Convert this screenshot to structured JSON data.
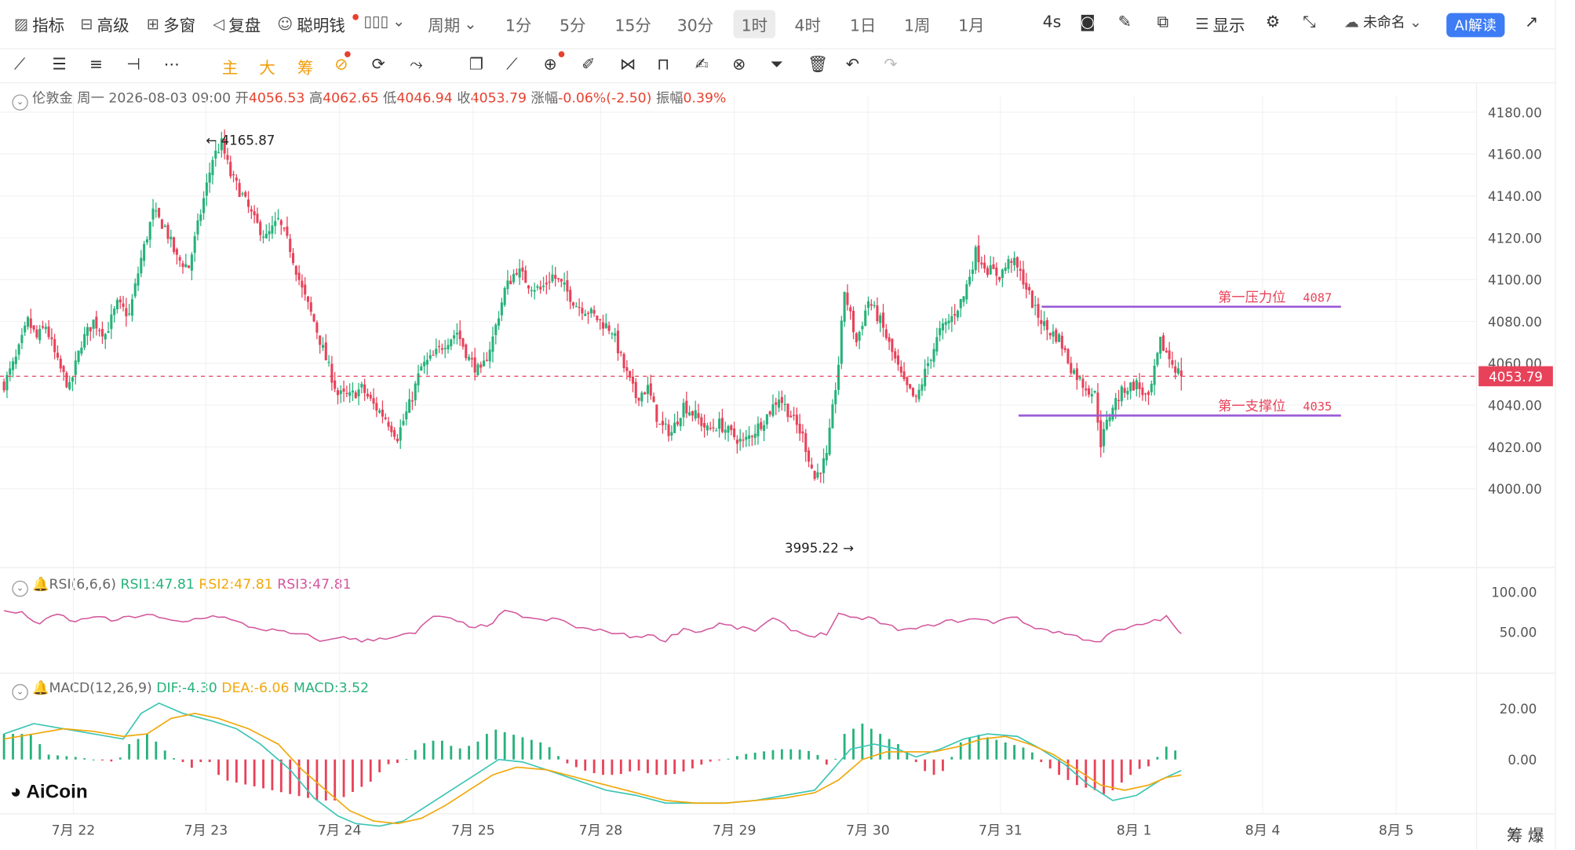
{
  "toolbar_top": {
    "items": [
      {
        "icon": "indicator-icon",
        "label": "指标"
      },
      {
        "icon": "advanced-icon",
        "label": "高级"
      },
      {
        "icon": "multi-window-icon",
        "label": "多窗"
      },
      {
        "icon": "replay-icon",
        "label": "复盘"
      },
      {
        "icon": "smart-money-icon",
        "label": "聪明钱"
      }
    ],
    "period_label": "周期",
    "periods": [
      "1分",
      "5分",
      "15分",
      "30分",
      "1时",
      "4时",
      "1日",
      "1周",
      "1月"
    ],
    "active_period": "1时",
    "refresh": "4s",
    "display_label": "显示",
    "layout_name": "未命名",
    "ai_label": "AI解读"
  },
  "toolbar_draw": {
    "orange_items": [
      "主",
      "大",
      "筹"
    ],
    "tool_icons": [
      "line-tool-icon",
      "parallel-tool-icon",
      "channel-tool-icon",
      "hline-tool-icon",
      "more-tools-icon",
      "copy-icon",
      "ruler-icon",
      "zoom-icon",
      "brush-icon",
      "magnet-icon",
      "lock-icon",
      "edit-icon",
      "link-icon",
      "filter-icon",
      "delete-icon",
      "undo-icon",
      "redo-icon"
    ]
  },
  "ohlc": {
    "name": "伦敦金",
    "weekday": "周一",
    "datetime": "2026-08-03 09:00",
    "open_label": "开",
    "open": "4056.53",
    "high_label": "高",
    "high": "4062.65",
    "low_label": "低",
    "low": "4046.94",
    "close_label": "收",
    "close": "4053.79",
    "change_label": "涨幅",
    "change": "-0.06%(-2.50)",
    "amp_label": "振幅",
    "amp": "0.39%"
  },
  "rsi": {
    "title": "RSI(6,6,6)",
    "rsi1": "RSI1:47.81",
    "rsi2": "RSI2:47.81",
    "rsi3": "RSI3:47.81"
  },
  "macd": {
    "title": "MACD(12,26,9)",
    "dif": "DIF:-4.30",
    "dea": "DEA:-6.06",
    "macd": "MACD:3.52"
  },
  "logo": "AiCoin",
  "bottom_right": "筹  爆",
  "colors": {
    "up": "#26b27a",
    "down": "#e8425a",
    "rsi": "#d3569c",
    "dif": "#3bc5b5",
    "dea": "#f0a80a",
    "level": "#9a5ad6",
    "price_tag": "#e8425a"
  },
  "chart_data": {
    "type": "candlestick",
    "symbol": "伦敦金",
    "interval": "1h",
    "y_ticks": [
      "4000.00",
      "4020.00",
      "4040.00",
      "4060.00",
      "4080.00",
      "4100.00",
      "4120.00",
      "4140.00",
      "4160.00",
      "4180.00"
    ],
    "ylim": [
      3970,
      4188
    ],
    "x_ticks": [
      "7月 22",
      "7月 23",
      "7月 24",
      "7月 25",
      "7月 28",
      "7月 29",
      "7月 30",
      "7月 31",
      "8月 1",
      "8月 4",
      "8月 5"
    ],
    "current_price": "4053.79",
    "max_marker": "4165.87",
    "min_marker": "3995.22",
    "levels": [
      {
        "name": "第一压力位",
        "value": 4087,
        "value_label": "4087"
      },
      {
        "name": "第一支撑位",
        "value": 4035,
        "value_label": "4035"
      }
    ],
    "rsi_ticks": [
      "100.00",
      "50.00"
    ],
    "macd_ticks": [
      "20.00",
      "0.00"
    ],
    "close_path": [
      [
        0,
        4050
      ],
      [
        4,
        4062
      ],
      [
        8,
        4080
      ],
      [
        11,
        4072
      ],
      [
        14,
        4078
      ],
      [
        18,
        4060
      ],
      [
        22,
        4048
      ],
      [
        26,
        4070
      ],
      [
        30,
        4080
      ],
      [
        34,
        4074
      ],
      [
        38,
        4088
      ],
      [
        42,
        4083
      ],
      [
        46,
        4110
      ],
      [
        50,
        4132
      ],
      [
        54,
        4125
      ],
      [
        58,
        4110
      ],
      [
        62,
        4106
      ],
      [
        66,
        4132
      ],
      [
        70,
        4158
      ],
      [
        73,
        4165
      ],
      [
        76,
        4150
      ],
      [
        80,
        4140
      ],
      [
        84,
        4128
      ],
      [
        88,
        4120
      ],
      [
        92,
        4128
      ],
      [
        96,
        4115
      ],
      [
        100,
        4095
      ],
      [
        104,
        4080
      ],
      [
        108,
        4062
      ],
      [
        112,
        4045
      ],
      [
        116,
        4044
      ],
      [
        120,
        4048
      ],
      [
        124,
        4040
      ],
      [
        128,
        4034
      ],
      [
        132,
        4025
      ],
      [
        136,
        4040
      ],
      [
        140,
        4058
      ],
      [
        144,
        4063
      ],
      [
        148,
        4070
      ],
      [
        152,
        4075
      ],
      [
        156,
        4062
      ],
      [
        160,
        4055
      ],
      [
        164,
        4072
      ],
      [
        168,
        4095
      ],
      [
        172,
        4105
      ],
      [
        176,
        4098
      ],
      [
        180,
        4095
      ],
      [
        184,
        4102
      ],
      [
        188,
        4096
      ],
      [
        192,
        4088
      ],
      [
        196,
        4085
      ],
      [
        200,
        4080
      ],
      [
        204,
        4076
      ],
      [
        208,
        4058
      ],
      [
        212,
        4044
      ],
      [
        216,
        4048
      ],
      [
        220,
        4030
      ],
      [
        224,
        4027
      ],
      [
        228,
        4040
      ],
      [
        232,
        4035
      ],
      [
        236,
        4028
      ],
      [
        240,
        4031
      ],
      [
        244,
        4026
      ],
      [
        248,
        4022
      ],
      [
        252,
        4028
      ],
      [
        256,
        4035
      ],
      [
        260,
        4044
      ],
      [
        264,
        4035
      ],
      [
        268,
        4025
      ],
      [
        272,
        4005
      ],
      [
        276,
        4015
      ],
      [
        280,
        4060
      ],
      [
        282,
        4095
      ],
      [
        286,
        4070
      ],
      [
        290,
        4090
      ],
      [
        294,
        4080
      ],
      [
        298,
        4065
      ],
      [
        302,
        4050
      ],
      [
        306,
        4042
      ],
      [
        310,
        4060
      ],
      [
        314,
        4075
      ],
      [
        318,
        4082
      ],
      [
        322,
        4092
      ],
      [
        326,
        4113
      ],
      [
        330,
        4105
      ],
      [
        334,
        4102
      ],
      [
        338,
        4110
      ],
      [
        342,
        4100
      ],
      [
        346,
        4085
      ],
      [
        350,
        4076
      ],
      [
        354,
        4072
      ],
      [
        358,
        4058
      ],
      [
        362,
        4050
      ],
      [
        366,
        4045
      ],
      [
        368,
        4022
      ],
      [
        372,
        4040
      ],
      [
        376,
        4048
      ],
      [
        380,
        4050
      ],
      [
        384,
        4042
      ],
      [
        388,
        4070
      ],
      [
        392,
        4060
      ],
      [
        395,
        4053.79
      ]
    ],
    "rsi_path": [
      [
        0,
        76
      ],
      [
        6,
        73
      ],
      [
        12,
        60
      ],
      [
        18,
        72
      ],
      [
        24,
        62
      ],
      [
        30,
        70
      ],
      [
        36,
        64
      ],
      [
        42,
        68
      ],
      [
        48,
        72
      ],
      [
        54,
        65
      ],
      [
        60,
        62
      ],
      [
        66,
        68
      ],
      [
        72,
        70
      ],
      [
        78,
        62
      ],
      [
        84,
        55
      ],
      [
        90,
        52
      ],
      [
        96,
        48
      ],
      [
        102,
        45
      ],
      [
        108,
        38
      ],
      [
        114,
        45
      ],
      [
        120,
        38
      ],
      [
        126,
        42
      ],
      [
        132,
        45
      ],
      [
        138,
        48
      ],
      [
        144,
        70
      ],
      [
        150,
        65
      ],
      [
        156,
        58
      ],
      [
        162,
        56
      ],
      [
        168,
        75
      ],
      [
        174,
        70
      ],
      [
        180,
        64
      ],
      [
        186,
        66
      ],
      [
        192,
        56
      ],
      [
        198,
        52
      ],
      [
        204,
        50
      ],
      [
        210,
        44
      ],
      [
        216,
        46
      ],
      [
        222,
        40
      ],
      [
        228,
        54
      ],
      [
        234,
        50
      ],
      [
        240,
        60
      ],
      [
        246,
        55
      ],
      [
        252,
        52
      ],
      [
        258,
        66
      ],
      [
        264,
        54
      ],
      [
        270,
        45
      ],
      [
        276,
        48
      ],
      [
        280,
        72
      ],
      [
        284,
        66
      ],
      [
        290,
        68
      ],
      [
        296,
        58
      ],
      [
        302,
        52
      ],
      [
        308,
        55
      ],
      [
        314,
        62
      ],
      [
        320,
        64
      ],
      [
        326,
        66
      ],
      [
        332,
        62
      ],
      [
        338,
        70
      ],
      [
        344,
        58
      ],
      [
        350,
        52
      ],
      [
        356,
        48
      ],
      [
        362,
        42
      ],
      [
        368,
        38
      ],
      [
        372,
        50
      ],
      [
        378,
        55
      ],
      [
        384,
        62
      ],
      [
        390,
        68
      ],
      [
        395,
        47.81
      ]
    ],
    "dif_path": [
      [
        0,
        10
      ],
      [
        10,
        14
      ],
      [
        20,
        12
      ],
      [
        30,
        10
      ],
      [
        40,
        8
      ],
      [
        46,
        18
      ],
      [
        52,
        22
      ],
      [
        60,
        18
      ],
      [
        70,
        15
      ],
      [
        78,
        12
      ],
      [
        86,
        6
      ],
      [
        96,
        -4
      ],
      [
        104,
        -15
      ],
      [
        112,
        -22
      ],
      [
        118,
        -25
      ],
      [
        126,
        -26
      ],
      [
        134,
        -24
      ],
      [
        142,
        -18
      ],
      [
        150,
        -12
      ],
      [
        158,
        -6
      ],
      [
        166,
        0
      ],
      [
        174,
        -1
      ],
      [
        182,
        -4
      ],
      [
        192,
        -8
      ],
      [
        202,
        -12
      ],
      [
        212,
        -14
      ],
      [
        222,
        -17
      ],
      [
        232,
        -17
      ],
      [
        242,
        -17
      ],
      [
        252,
        -16
      ],
      [
        262,
        -14
      ],
      [
        272,
        -12
      ],
      [
        278,
        -4
      ],
      [
        284,
        4
      ],
      [
        292,
        6
      ],
      [
        300,
        4
      ],
      [
        306,
        1
      ],
      [
        314,
        4
      ],
      [
        322,
        8
      ],
      [
        330,
        10
      ],
      [
        340,
        9
      ],
      [
        348,
        4
      ],
      [
        356,
        -2
      ],
      [
        364,
        -10
      ],
      [
        372,
        -16
      ],
      [
        380,
        -14
      ],
      [
        388,
        -8
      ],
      [
        395,
        -4.3
      ]
    ],
    "dea_path": [
      [
        0,
        8
      ],
      [
        10,
        10
      ],
      [
        20,
        12
      ],
      [
        30,
        11
      ],
      [
        40,
        9
      ],
      [
        48,
        10
      ],
      [
        56,
        16
      ],
      [
        64,
        18
      ],
      [
        72,
        16
      ],
      [
        82,
        12
      ],
      [
        92,
        6
      ],
      [
        100,
        -4
      ],
      [
        108,
        -12
      ],
      [
        116,
        -20
      ],
      [
        124,
        -24
      ],
      [
        132,
        -25
      ],
      [
        140,
        -23
      ],
      [
        148,
        -18
      ],
      [
        156,
        -12
      ],
      [
        164,
        -6
      ],
      [
        172,
        -3
      ],
      [
        182,
        -4
      ],
      [
        192,
        -7
      ],
      [
        202,
        -10
      ],
      [
        212,
        -13
      ],
      [
        222,
        -16
      ],
      [
        232,
        -17
      ],
      [
        242,
        -17
      ],
      [
        252,
        -16
      ],
      [
        262,
        -15
      ],
      [
        272,
        -13
      ],
      [
        280,
        -8
      ],
      [
        288,
        0
      ],
      [
        296,
        3
      ],
      [
        304,
        3
      ],
      [
        312,
        3
      ],
      [
        320,
        5
      ],
      [
        328,
        8
      ],
      [
        336,
        9
      ],
      [
        344,
        6
      ],
      [
        352,
        2
      ],
      [
        360,
        -4
      ],
      [
        368,
        -10
      ],
      [
        376,
        -12
      ],
      [
        384,
        -10
      ],
      [
        390,
        -7
      ],
      [
        395,
        -6.06
      ]
    ],
    "macd_hist_path": [
      [
        0,
        10
      ],
      [
        10,
        10
      ],
      [
        14,
        2
      ],
      [
        24,
        1
      ],
      [
        30,
        0
      ],
      [
        38,
        -1
      ],
      [
        42,
        6
      ],
      [
        48,
        10
      ],
      [
        52,
        6
      ],
      [
        56,
        1
      ],
      [
        60,
        -1
      ],
      [
        64,
        -4
      ],
      [
        68,
        2
      ],
      [
        70,
        -4
      ],
      [
        74,
        -8
      ],
      [
        82,
        -10
      ],
      [
        90,
        -12
      ],
      [
        98,
        -14
      ],
      [
        106,
        -16
      ],
      [
        112,
        -16
      ],
      [
        118,
        -12
      ],
      [
        124,
        -8
      ],
      [
        128,
        -2
      ],
      [
        134,
        -1
      ],
      [
        140,
        6
      ],
      [
        146,
        8
      ],
      [
        152,
        4
      ],
      [
        158,
        6
      ],
      [
        164,
        12
      ],
      [
        170,
        10
      ],
      [
        176,
        8
      ],
      [
        182,
        6
      ],
      [
        188,
        -1
      ],
      [
        194,
        -4
      ],
      [
        200,
        -6
      ],
      [
        206,
        -6
      ],
      [
        212,
        -4
      ],
      [
        218,
        -6
      ],
      [
        224,
        -6
      ],
      [
        230,
        -4
      ],
      [
        236,
        -1
      ],
      [
        242,
        0
      ],
      [
        248,
        2
      ],
      [
        254,
        3
      ],
      [
        260,
        4
      ],
      [
        266,
        4
      ],
      [
        272,
        3
      ],
      [
        276,
        -2
      ],
      [
        278,
        -3
      ],
      [
        282,
        10
      ],
      [
        288,
        14
      ],
      [
        294,
        10
      ],
      [
        300,
        6
      ],
      [
        304,
        2
      ],
      [
        308,
        -4
      ],
      [
        312,
        -6
      ],
      [
        316,
        -4
      ],
      [
        320,
        6
      ],
      [
        326,
        10
      ],
      [
        332,
        8
      ],
      [
        338,
        6
      ],
      [
        344,
        4
      ],
      [
        348,
        -1
      ],
      [
        354,
        -6
      ],
      [
        360,
        -10
      ],
      [
        366,
        -12
      ],
      [
        370,
        -14
      ],
      [
        374,
        -10
      ],
      [
        380,
        -4
      ],
      [
        386,
        -2
      ],
      [
        388,
        4
      ],
      [
        392,
        6
      ],
      [
        395,
        3.52
      ]
    ]
  }
}
